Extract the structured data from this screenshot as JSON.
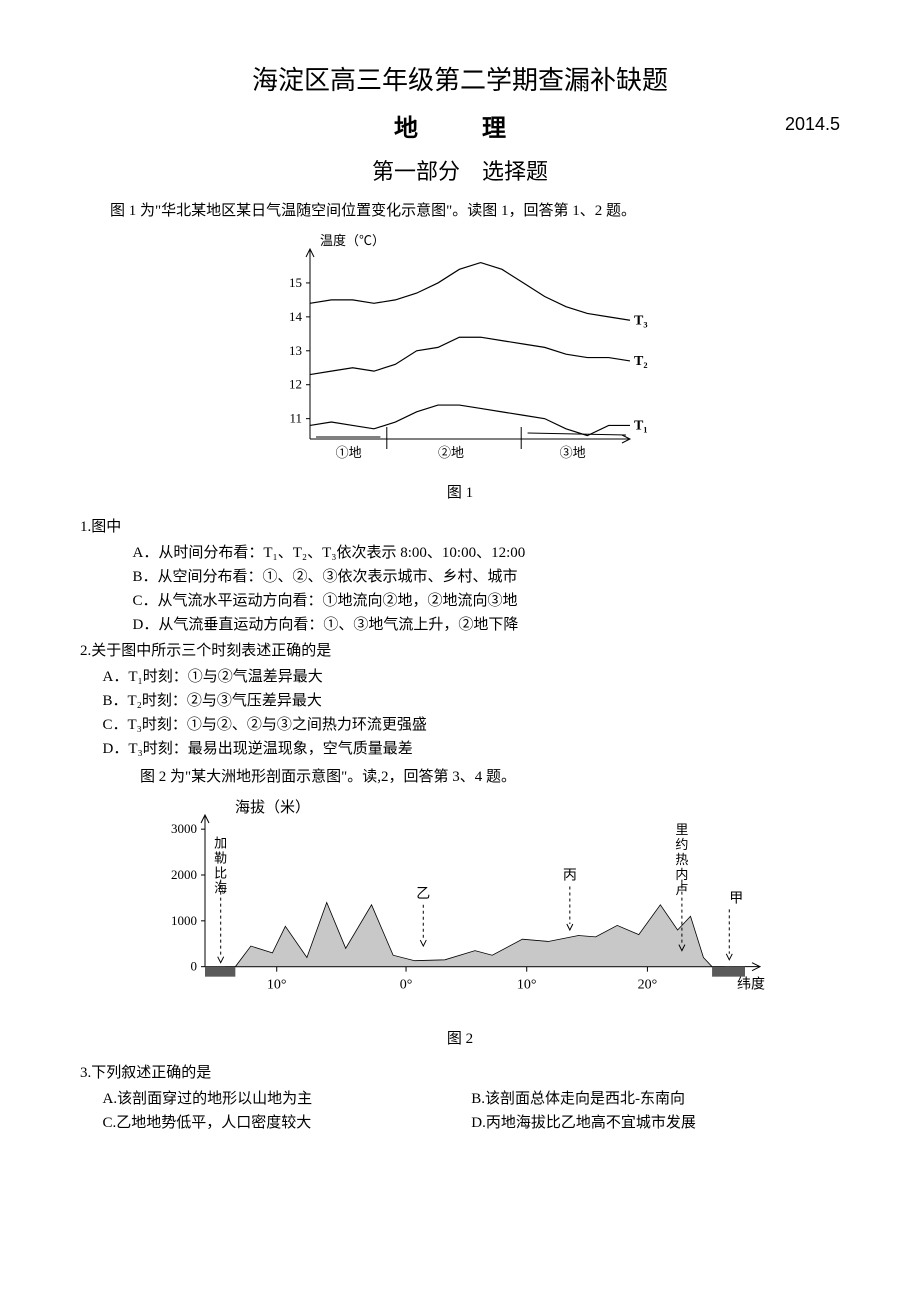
{
  "header": {
    "title": "海淀区高三年级第二学期查漏补缺题",
    "subject": "地　理",
    "date": "2014.5",
    "section": "第一部分　选择题"
  },
  "intro1": "图 1 为\"华北某地区某日气温随空间位置变化示意图\"。读图 1，回答第 1、2 题。",
  "fig1": {
    "label": "图 1",
    "ylabel": "温度（℃）",
    "yticks": [
      11,
      12,
      13,
      14,
      15
    ],
    "ylim": [
      10.4,
      16
    ],
    "series": {
      "T1": {
        "label": "T₁",
        "ys": [
          10.8,
          10.9,
          10.8,
          10.7,
          10.9,
          11.2,
          11.4,
          11.4,
          11.3,
          11.2,
          11.1,
          11.0,
          10.7,
          10.5,
          10.8,
          10.8
        ]
      },
      "T2": {
        "label": "T₂",
        "ys": [
          12.3,
          12.4,
          12.5,
          12.4,
          12.6,
          13.0,
          13.1,
          13.4,
          13.4,
          13.3,
          13.2,
          13.1,
          12.9,
          12.8,
          12.8,
          12.7
        ]
      },
      "T3": {
        "label": "T₃",
        "ys": [
          14.4,
          14.5,
          14.5,
          14.4,
          14.5,
          14.7,
          15.0,
          15.4,
          15.6,
          15.4,
          15.0,
          14.6,
          14.3,
          14.1,
          14.0,
          13.9
        ]
      }
    },
    "ground_labels": [
      "①地",
      "②地",
      "③地"
    ],
    "stroke": "#000000",
    "bg": "#ffffff",
    "axis_fontsize": 13
  },
  "q1": {
    "stem": "1.图中",
    "A": "A．从时间分布看：T₁、T₂、T₃依次表示 8:00、10:00、12:00",
    "B": "B．从空间分布看：①、②、③依次表示城市、乡村、城市",
    "C": "C．从气流水平运动方向看：①地流向②地，②地流向③地",
    "D": "D．从气流垂直运动方向看：①、③地气流上升，②地下降"
  },
  "q2": {
    "stem": "2.关于图中所示三个时刻表述正确的是",
    "A": "A．T₁时刻：①与②气温差异最大",
    "B": "B．T₂时刻：②与③气压差异最大",
    "C": "C．T₃时刻：①与②、②与③之间热力环流更强盛",
    "D": "D．T₃时刻：最易出现逆温现象，空气质量最差"
  },
  "intro2": "图 2 为\"某大洲地形剖面示意图\"。读,2，回答第 3、4 题。",
  "fig2": {
    "label": "图 2",
    "ylabel": "海拔（米）",
    "yticks": [
      0,
      1000,
      2000,
      3000
    ],
    "ylim": [
      -400,
      3200
    ],
    "xticks": [
      "10°",
      "0°",
      "10°",
      "20°"
    ],
    "xlabel_right": "纬度",
    "left_sea": "加勒比海",
    "markers": {
      "yi": "乙",
      "bing": "丙",
      "rio": "里约热内卢",
      "jia": "甲"
    },
    "fill": "#c8c8c8",
    "sea_fill": "#5a5a5a",
    "stroke": "#000000",
    "bg": "#ffffff",
    "profile_x": [
      0,
      12,
      30,
      55,
      70,
      95,
      118,
      140,
      170,
      195,
      220,
      255,
      290,
      310,
      345,
      375,
      410,
      430,
      455,
      480,
      505,
      525,
      540,
      555,
      565,
      580
    ],
    "profile_y": [
      0,
      0,
      450,
      300,
      880,
      200,
      1400,
      400,
      1350,
      250,
      130,
      150,
      350,
      250,
      600,
      550,
      680,
      650,
      900,
      700,
      1350,
      800,
      1100,
      200,
      0,
      0
    ]
  },
  "q3": {
    "stem": "3.下列叙述正确的是",
    "A": "A.该剖面穿过的地形以山地为主",
    "B": "B.该剖面总体走向是西北-东南向",
    "C": "C.乙地地势低平，人口密度较大",
    "D": "D.丙地海拔比乙地高不宜城市发展"
  }
}
